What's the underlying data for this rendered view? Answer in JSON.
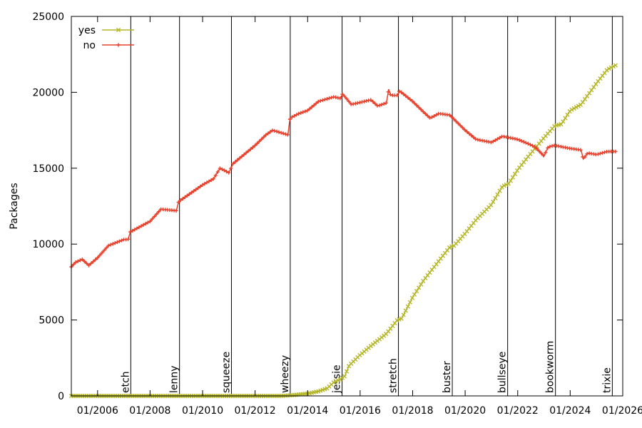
{
  "chart_data": {
    "type": "line",
    "title": "",
    "xlabel": "",
    "ylabel": "Packages",
    "xlim": [
      "2005-01-01",
      "2026-01-01"
    ],
    "ylim": [
      0,
      25000
    ],
    "x_ticks": [
      "01/2006",
      "01/2008",
      "01/2010",
      "01/2012",
      "01/2014",
      "01/2016",
      "01/2018",
      "01/2020",
      "01/2022",
      "01/2024",
      "01/2026"
    ],
    "y_ticks": [
      "0",
      "5000",
      "10000",
      "15000",
      "20000",
      "25000"
    ],
    "grid": false,
    "legend_position": "top-left",
    "releases": [
      {
        "name": "etch",
        "date": "2007-04-08"
      },
      {
        "name": "lenny",
        "date": "2009-02-14"
      },
      {
        "name": "squeeze",
        "date": "2011-02-06"
      },
      {
        "name": "wheezy",
        "date": "2013-05-04"
      },
      {
        "name": "jessie",
        "date": "2015-04-25"
      },
      {
        "name": "stretch",
        "date": "2017-06-17"
      },
      {
        "name": "buster",
        "date": "2019-07-06"
      },
      {
        "name": "bullseye",
        "date": "2021-08-14"
      },
      {
        "name": "bookworm",
        "date": "2023-06-10"
      },
      {
        "name": "trixie",
        "date": "2025-08-09"
      }
    ],
    "series": [
      {
        "name": "yes",
        "color": "#b5b629",
        "marker": "x",
        "points": [
          [
            "2005-01-01",
            0
          ],
          [
            "2006-01-01",
            0
          ],
          [
            "2007-01-01",
            0
          ],
          [
            "2008-01-01",
            0
          ],
          [
            "2009-01-01",
            0
          ],
          [
            "2010-01-01",
            0
          ],
          [
            "2011-01-01",
            0
          ],
          [
            "2012-01-01",
            0
          ],
          [
            "2013-01-01",
            0
          ],
          [
            "2013-06-01",
            50
          ],
          [
            "2014-01-01",
            150
          ],
          [
            "2014-06-01",
            300
          ],
          [
            "2014-10-01",
            500
          ],
          [
            "2015-01-01",
            900
          ],
          [
            "2015-04-01",
            1100
          ],
          [
            "2015-06-01",
            1300
          ],
          [
            "2015-08-01",
            2000
          ],
          [
            "2016-01-01",
            2700
          ],
          [
            "2016-06-01",
            3300
          ],
          [
            "2017-01-01",
            4100
          ],
          [
            "2017-06-01",
            5000
          ],
          [
            "2017-08-01",
            5100
          ],
          [
            "2018-01-01",
            6500
          ],
          [
            "2018-06-01",
            7600
          ],
          [
            "2019-01-01",
            8900
          ],
          [
            "2019-06-01",
            9800
          ],
          [
            "2019-08-01",
            9900
          ],
          [
            "2020-01-01",
            10700
          ],
          [
            "2020-06-01",
            11600
          ],
          [
            "2021-01-01",
            12600
          ],
          [
            "2021-06-01",
            13800
          ],
          [
            "2021-09-01",
            14000
          ],
          [
            "2022-01-01",
            14900
          ],
          [
            "2022-06-01",
            15800
          ],
          [
            "2023-01-01",
            17000
          ],
          [
            "2023-06-01",
            17800
          ],
          [
            "2023-09-01",
            17900
          ],
          [
            "2024-01-01",
            18800
          ],
          [
            "2024-06-01",
            19200
          ],
          [
            "2025-01-01",
            20600
          ],
          [
            "2025-06-01",
            21500
          ],
          [
            "2025-10-01",
            21800
          ]
        ]
      },
      {
        "name": "no",
        "color": "#e8412c",
        "marker": "+",
        "points": [
          [
            "2005-01-01",
            8500
          ],
          [
            "2005-03-01",
            8800
          ],
          [
            "2005-06-01",
            9000
          ],
          [
            "2005-09-01",
            8600
          ],
          [
            "2006-01-01",
            9100
          ],
          [
            "2006-06-01",
            9900
          ],
          [
            "2007-01-01",
            10300
          ],
          [
            "2007-03-01",
            10300
          ],
          [
            "2007-04-01",
            10800
          ],
          [
            "2008-01-01",
            11500
          ],
          [
            "2008-06-01",
            12300
          ],
          [
            "2009-01-01",
            12200
          ],
          [
            "2009-02-01",
            12800
          ],
          [
            "2010-01-01",
            13900
          ],
          [
            "2010-06-01",
            14300
          ],
          [
            "2010-09-01",
            15000
          ],
          [
            "2011-01-01",
            14700
          ],
          [
            "2011-03-01",
            15300
          ],
          [
            "2012-01-01",
            16500
          ],
          [
            "2012-06-01",
            17200
          ],
          [
            "2012-09-01",
            17500
          ],
          [
            "2013-04-01",
            17200
          ],
          [
            "2013-05-01",
            18300
          ],
          [
            "2013-09-01",
            18600
          ],
          [
            "2014-01-01",
            18800
          ],
          [
            "2014-06-01",
            19400
          ],
          [
            "2015-01-01",
            19700
          ],
          [
            "2015-04-01",
            19600
          ],
          [
            "2015-05-01",
            19900
          ],
          [
            "2015-09-01",
            19200
          ],
          [
            "2016-06-01",
            19500
          ],
          [
            "2016-09-01",
            19100
          ],
          [
            "2017-01-01",
            19300
          ],
          [
            "2017-02-01",
            20200
          ],
          [
            "2017-03-01",
            19800
          ],
          [
            "2017-06-01",
            19800
          ],
          [
            "2017-07-01",
            20100
          ],
          [
            "2018-01-01",
            19400
          ],
          [
            "2018-06-01",
            18700
          ],
          [
            "2018-09-01",
            18300
          ],
          [
            "2019-01-01",
            18600
          ],
          [
            "2019-06-01",
            18500
          ],
          [
            "2020-01-01",
            17500
          ],
          [
            "2020-06-01",
            16900
          ],
          [
            "2021-01-01",
            16700
          ],
          [
            "2021-06-01",
            17100
          ],
          [
            "2022-01-01",
            16900
          ],
          [
            "2022-06-01",
            16600
          ],
          [
            "2022-09-01",
            16400
          ],
          [
            "2023-01-01",
            15800
          ],
          [
            "2023-03-01",
            16400
          ],
          [
            "2023-06-01",
            16500
          ],
          [
            "2024-01-01",
            16300
          ],
          [
            "2024-06-01",
            16200
          ],
          [
            "2024-07-01",
            15600
          ],
          [
            "2024-09-01",
            16000
          ],
          [
            "2025-01-01",
            15900
          ],
          [
            "2025-06-01",
            16100
          ],
          [
            "2025-10-01",
            16100
          ]
        ]
      }
    ]
  }
}
